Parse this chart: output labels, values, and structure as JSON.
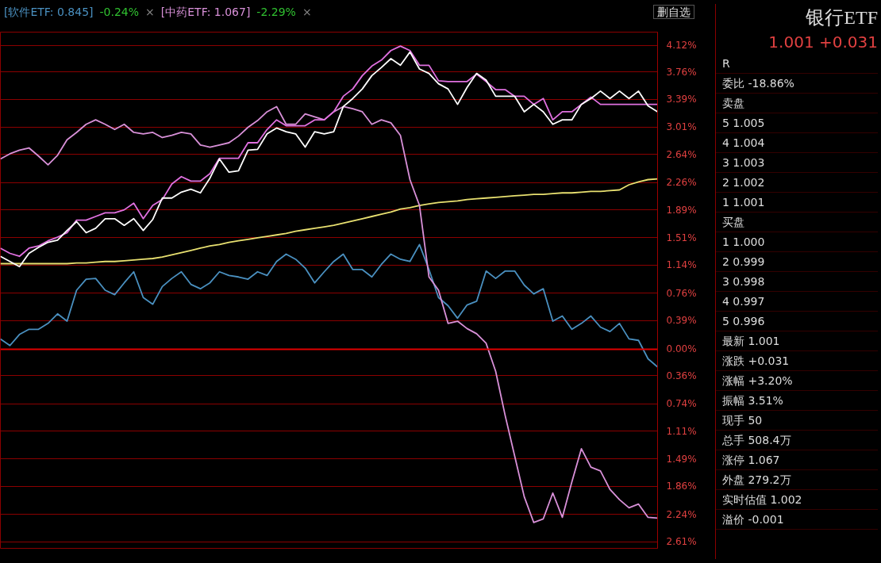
{
  "chart_data": [
    {
      "type": "line",
      "grid": "y",
      "marker": "none",
      "line_style": "solid",
      "categories": [
        null,
        null,
        null,
        null,
        null,
        null,
        null,
        null,
        null,
        null,
        null,
        null,
        null,
        null,
        null,
        null,
        null,
        null,
        null,
        null,
        null,
        null,
        null,
        null,
        null,
        null,
        null,
        null,
        null,
        null,
        null,
        null,
        null,
        null,
        null,
        null,
        null,
        null,
        null,
        null,
        null,
        null,
        null,
        null,
        null,
        null,
        null,
        null,
        null,
        null,
        null,
        null,
        null,
        null,
        null,
        null,
        null,
        null,
        null,
        null,
        null,
        null,
        null,
        null,
        null,
        null,
        null,
        null,
        null,
        null
      ],
      "ylim": [
        -2.7,
        4.3
      ],
      "yticks": [
        {
          "value": 4.12,
          "label": "4.12%"
        },
        {
          "value": 3.76,
          "label": "3.76%"
        },
        {
          "value": 3.39,
          "label": "3.39%"
        },
        {
          "value": 3.01,
          "label": "3.01%"
        },
        {
          "value": 2.64,
          "label": "2.64%"
        },
        {
          "value": 2.26,
          "label": "2.26%"
        },
        {
          "value": 1.89,
          "label": "1.89%"
        },
        {
          "value": 1.51,
          "label": "1.51%"
        },
        {
          "value": 1.14,
          "label": "1.14%"
        },
        {
          "value": 0.76,
          "label": "0.76%"
        },
        {
          "value": 0.39,
          "label": "0.39%"
        },
        {
          "value": 0,
          "label": "0.00%"
        },
        {
          "value": -0.36,
          "label": "0.36%"
        },
        {
          "value": -0.74,
          "label": "0.74%"
        },
        {
          "value": -1.11,
          "label": "1.11%"
        },
        {
          "value": -1.49,
          "label": "1.49%"
        },
        {
          "value": -1.86,
          "label": "1.86%"
        },
        {
          "value": -2.24,
          "label": "2.24%"
        },
        {
          "value": -2.61,
          "label": "2.61%"
        }
      ],
      "ref_lines": [
        {
          "axis": "y",
          "value": 0,
          "color": "#e00000"
        }
      ],
      "annotations": [
        "-0.24%",
        "×",
        "-2.29%",
        "×",
        "删自选"
      ],
      "series": [
        {
          "color": "#e8e070",
          "values": [
            1.16,
            1.16,
            1.16,
            1.16,
            1.16,
            1.16,
            1.16,
            1.16,
            1.17,
            1.17,
            1.18,
            1.19,
            1.19,
            1.2,
            1.21,
            1.22,
            1.23,
            1.25,
            1.28,
            1.31,
            1.34,
            1.37,
            1.4,
            1.42,
            1.45,
            1.47,
            1.49,
            1.51,
            1.53,
            1.55,
            1.57,
            1.6,
            1.62,
            1.64,
            1.66,
            1.68,
            1.71,
            1.74,
            1.77,
            1.8,
            1.83,
            1.86,
            1.9,
            1.92,
            1.95,
            1.97,
            1.99,
            2.0,
            2.01,
            2.03,
            2.04,
            2.05,
            2.06,
            2.07,
            2.08,
            2.09,
            2.1,
            2.1,
            2.11,
            2.12,
            2.12,
            2.13,
            2.14,
            2.14,
            2.15,
            2.16,
            2.23,
            2.27,
            2.3,
            2.31
          ]
        },
        {
          "name": "[软件ETF: 0.845]",
          "color": "#4a90c0",
          "values": [
            0.14,
            0.05,
            0.2,
            0.27,
            0.27,
            0.35,
            0.48,
            0.38,
            0.8,
            0.95,
            0.96,
            0.8,
            0.74,
            0.9,
            1.05,
            0.7,
            0.61,
            0.85,
            0.96,
            1.05,
            0.88,
            0.82,
            0.9,
            1.05,
            1.0,
            0.98,
            0.95,
            1.05,
            1.0,
            1.19,
            1.29,
            1.22,
            1.1,
            0.9,
            1.05,
            1.19,
            1.29,
            1.08,
            1.08,
            0.98,
            1.15,
            1.29,
            1.22,
            1.19,
            1.42,
            1.08,
            0.7,
            0.59,
            0.42,
            0.6,
            0.65,
            1.06,
            0.96,
            1.06,
            1.06,
            0.87,
            0.75,
            0.82,
            0.38,
            0.45,
            0.27,
            0.35,
            0.45,
            0.3,
            0.24,
            0.35,
            0.14,
            0.12,
            -0.13,
            -0.24
          ]
        },
        {
          "name": "[中药ETF: 1.067]",
          "color": "#d890d8",
          "values": [
            2.58,
            2.65,
            2.7,
            2.73,
            2.62,
            2.5,
            2.63,
            2.84,
            2.94,
            3.05,
            3.11,
            3.05,
            2.98,
            3.05,
            2.94,
            2.92,
            2.94,
            2.87,
            2.9,
            2.94,
            2.92,
            2.77,
            2.74,
            2.77,
            2.8,
            2.89,
            3.01,
            3.1,
            3.22,
            3.29,
            3.05,
            3.05,
            3.19,
            3.15,
            3.11,
            3.22,
            3.29,
            3.26,
            3.22,
            3.05,
            3.11,
            3.07,
            2.9,
            2.3,
            1.95,
            0.98,
            0.8,
            0.35,
            0.38,
            0.28,
            0.21,
            0.08,
            -0.3,
            -0.9,
            -1.45,
            -2.0,
            -2.35,
            -2.3,
            -1.95,
            -2.28,
            -1.8,
            -1.35,
            -1.6,
            -1.65,
            -1.9,
            -2.04,
            -2.15,
            -2.1,
            -2.28,
            -2.29
          ]
        },
        {
          "color": "#e070e0",
          "values": [
            1.37,
            1.3,
            1.26,
            1.37,
            1.4,
            1.47,
            1.52,
            1.58,
            1.75,
            1.75,
            1.8,
            1.85,
            1.85,
            1.89,
            1.98,
            1.77,
            1.95,
            2.03,
            2.24,
            2.34,
            2.28,
            2.28,
            2.38,
            2.59,
            2.59,
            2.59,
            2.8,
            2.8,
            2.98,
            3.11,
            3.03,
            3.03,
            3.03,
            3.11,
            3.11,
            3.22,
            3.43,
            3.53,
            3.71,
            3.84,
            3.92,
            4.05,
            4.11,
            4.05,
            3.85,
            3.85,
            3.64,
            3.63,
            3.63,
            3.63,
            3.73,
            3.63,
            3.52,
            3.52,
            3.43,
            3.43,
            3.32,
            3.4,
            3.11,
            3.22,
            3.22,
            3.32,
            3.42,
            3.32,
            3.32,
            3.32,
            3.32,
            3.32,
            3.32,
            3.32
          ]
        },
        {
          "color": "#ffffff",
          "values": [
            1.26,
            1.19,
            1.12,
            1.3,
            1.38,
            1.45,
            1.48,
            1.61,
            1.73,
            1.58,
            1.64,
            1.77,
            1.77,
            1.68,
            1.77,
            1.61,
            1.76,
            2.05,
            2.05,
            2.13,
            2.17,
            2.12,
            2.32,
            2.58,
            2.4,
            2.42,
            2.7,
            2.71,
            2.92,
            3.0,
            2.95,
            2.92,
            2.74,
            2.95,
            2.92,
            2.95,
            3.29,
            3.4,
            3.53,
            3.71,
            3.82,
            3.94,
            3.85,
            4.03,
            3.8,
            3.74,
            3.6,
            3.53,
            3.32,
            3.55,
            3.74,
            3.65,
            3.43,
            3.43,
            3.43,
            3.22,
            3.32,
            3.22,
            3.05,
            3.11,
            3.11,
            3.32,
            3.4,
            3.5,
            3.4,
            3.5,
            3.4,
            3.5,
            3.3,
            3.22
          ]
        }
      ]
    },
    {
      "type": "other",
      "title": "银行ETF",
      "subtitle": "1.001 +0.031",
      "annotations": [
        "R",
        "委比 -18.86%",
        "卖盘",
        "5 1.005",
        "4 1.004",
        "3 1.003",
        "2 1.002",
        "1 1.001",
        "买盘",
        "1 1.000",
        "2 0.999",
        "3 0.998",
        "4 0.997",
        "5 0.996",
        "最新 1.001",
        "涨跌 +0.031",
        "涨幅 +3.20%",
        "振幅 3.51%",
        "现手 50",
        "总手 508.4万",
        "涨停 1.067",
        "外盘 279.2万",
        "实时估值 1.002",
        "溢价 -0.001"
      ]
    }
  ]
}
